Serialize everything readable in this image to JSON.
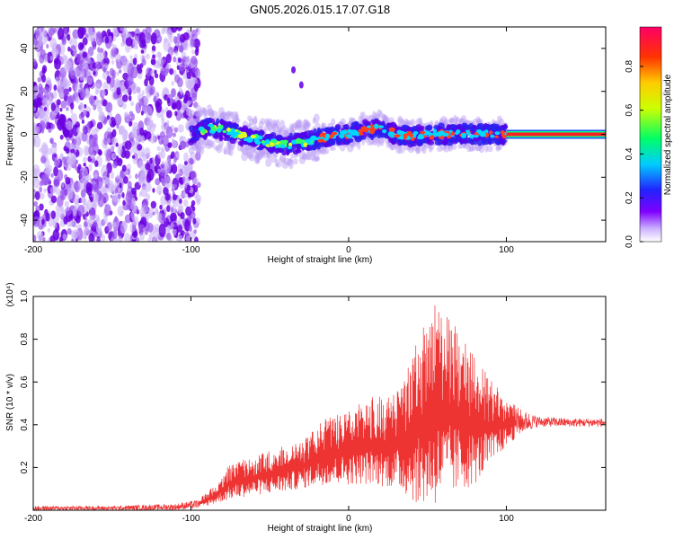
{
  "chart_data": [
    {
      "type": "scatter",
      "title": "GN05.2026.015.17.07.G18",
      "xlabel": "Height of straight line (km)",
      "ylabel": "Frequency (Hz)",
      "xlim": [
        -200,
        163
      ],
      "ylim": [
        -50,
        50
      ],
      "xticks": [
        "-200",
        "-100",
        "0",
        "100"
      ],
      "yticks": [
        "40",
        "20",
        "0",
        "-20",
        "-40"
      ],
      "description_series": [
        {
          "name": "noise scatter",
          "x_range": [
            -200,
            -95
          ],
          "freq_range": [
            -50,
            50
          ]
        },
        {
          "name": "signal track",
          "x": [
            -100,
            -90,
            -80,
            -70,
            -60,
            -50,
            -40,
            -30,
            -20,
            -10,
            0,
            10,
            20,
            30,
            40,
            50,
            60,
            70,
            80,
            90,
            100,
            163
          ],
          "freq": [
            0,
            3,
            2,
            0,
            -2,
            -4,
            -5,
            -4,
            -2,
            -1,
            0,
            2,
            3,
            0,
            -1,
            0,
            0,
            0,
            0,
            0,
            0,
            0
          ]
        },
        {
          "name": "outlier points",
          "x": [
            -35,
            -30
          ],
          "freq": [
            30,
            23
          ]
        }
      ],
      "colorbar": {
        "label": "Normalized spectral amplitude",
        "ticks": [
          "0.0",
          "0.2",
          "0.4",
          "0.6",
          "0.8"
        ],
        "range": [
          0,
          0.98
        ]
      }
    },
    {
      "type": "line",
      "xlabel": "Height of straight line (km)",
      "ylabel": "SNR (10 * v/v)",
      "y_multiplier": "(x10⁴)",
      "xlim": [
        -200,
        163
      ],
      "ylim": [
        0,
        1.0
      ],
      "xticks": [
        "-200",
        "-100",
        "0",
        "100"
      ],
      "yticks": [
        "1.0",
        "0.8",
        "0.6",
        "0.4",
        "0.2"
      ],
      "color": "#ee3333",
      "envelope": {
        "x": [
          -200,
          -150,
          -110,
          -95,
          -85,
          -75,
          -60,
          -45,
          -30,
          -15,
          0,
          15,
          30,
          45,
          55,
          60,
          70,
          80,
          90,
          100,
          110,
          120,
          140,
          163
        ],
        "low": [
          0.0,
          0.0,
          0.0,
          0.01,
          0.03,
          0.05,
          0.07,
          0.08,
          0.1,
          0.12,
          0.12,
          0.12,
          0.1,
          0.02,
          0.02,
          0.05,
          0.08,
          0.12,
          0.2,
          0.3,
          0.36,
          0.39,
          0.39,
          0.39
        ],
        "high": [
          0.02,
          0.02,
          0.03,
          0.05,
          0.12,
          0.22,
          0.25,
          0.3,
          0.33,
          0.43,
          0.47,
          0.53,
          0.55,
          0.82,
          0.98,
          0.95,
          0.85,
          0.72,
          0.62,
          0.52,
          0.47,
          0.44,
          0.43,
          0.43
        ]
      }
    }
  ]
}
